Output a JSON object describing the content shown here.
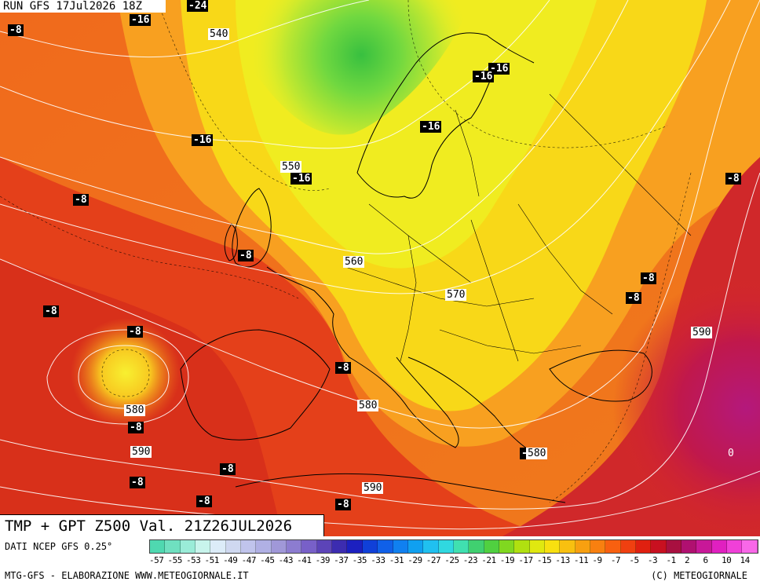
{
  "header": {
    "run_label": "RUN GFS 17Jul2026 18Z"
  },
  "title": "TMP + GPT Z500 Val. 21Z26JUL2026",
  "footer": {
    "source": "DATI NCEP GFS 0.25°",
    "credit": "MTG-GFS - ELABORAZIONE WWW.METEOGIORNALE.IT",
    "copyright": "(C) METEOGIORNALE"
  },
  "temperature_labels": [
    "-24",
    "-16",
    "-8",
    "-16",
    "-16",
    "-16",
    "-16",
    "-16",
    "-8",
    "-8",
    "-8",
    "-8",
    "-8",
    "-8",
    "-8",
    "-8",
    "-8",
    "-8",
    "-8",
    "-8",
    "-8",
    "-8",
    "-8",
    "0"
  ],
  "geopotential_labels": [
    "540",
    "550",
    "560",
    "570",
    "580",
    "580",
    "580",
    "590",
    "590",
    "590"
  ],
  "scale": {
    "ticks": [
      "-57",
      "-55",
      "-53",
      "-51",
      "-49",
      "-47",
      "-45",
      "-43",
      "-41",
      "-39",
      "-37",
      "-35",
      "-33",
      "-31",
      "-29",
      "-27",
      "-25",
      "-23",
      "-21",
      "-19",
      "-17",
      "-15",
      "-13",
      "-11",
      "-9",
      "-7",
      "-5",
      "-3",
      "-1",
      "2",
      "6",
      "10",
      "14"
    ],
    "colors": [
      "#4fd8b0",
      "#6fe0c0",
      "#9aecd8",
      "#c8f4ec",
      "#dcecf8",
      "#cfd8f0",
      "#c0c4ec",
      "#b0b0e4",
      "#a098d8",
      "#8c7cd0",
      "#7860c8",
      "#5c44b8",
      "#3c2cb0",
      "#1c20c0",
      "#1040d8",
      "#1060e8",
      "#1080f0",
      "#10a0f0",
      "#20c0f0",
      "#30d8e0",
      "#40e0b0",
      "#40d070",
      "#50d040",
      "#80d820",
      "#b0e010",
      "#e0e810",
      "#f8e010",
      "#f8c010",
      "#f8a010",
      "#f88010",
      "#f86010",
      "#f04010",
      "#e02010",
      "#c81020",
      "#a81040",
      "#b01070",
      "#c81898",
      "#e020c0",
      "#f040d8",
      "#f868e8"
    ]
  },
  "colors": {
    "cold": "#5bd24b",
    "cool": "#c8e820",
    "mild": "#f8e818",
    "warm": "#f89818",
    "hot": "#e83a18",
    "very_hot": "#c8142a",
    "extreme": "#b81470"
  }
}
